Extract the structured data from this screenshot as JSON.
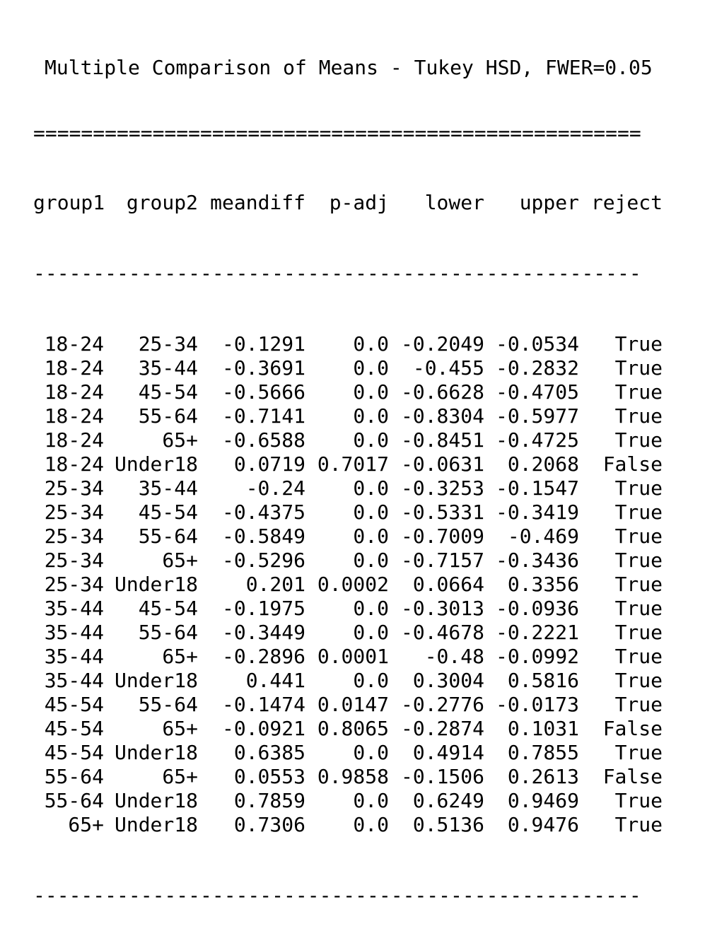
{
  "title": "Multiple Comparison of Means - Tukey HSD, FWER=0.05",
  "rule_double": "===================================================",
  "rule_single": "---------------------------------------------------",
  "columns": [
    "group1",
    "group2",
    "meandiff",
    "p-adj",
    "lower",
    "upper",
    "reject"
  ],
  "rows": [
    [
      "18-24",
      "25-34",
      "-0.1291",
      "0.0",
      "-0.2049",
      "-0.0534",
      "True"
    ],
    [
      "18-24",
      "35-44",
      "-0.3691",
      "0.0",
      "-0.455",
      "-0.2832",
      "True"
    ],
    [
      "18-24",
      "45-54",
      "-0.5666",
      "0.0",
      "-0.6628",
      "-0.4705",
      "True"
    ],
    [
      "18-24",
      "55-64",
      "-0.7141",
      "0.0",
      "-0.8304",
      "-0.5977",
      "True"
    ],
    [
      "18-24",
      "65+",
      "-0.6588",
      "0.0",
      "-0.8451",
      "-0.4725",
      "True"
    ],
    [
      "18-24",
      "Under18",
      "0.0719",
      "0.7017",
      "-0.0631",
      "0.2068",
      "False"
    ],
    [
      "25-34",
      "35-44",
      "-0.24",
      "0.0",
      "-0.3253",
      "-0.1547",
      "True"
    ],
    [
      "25-34",
      "45-54",
      "-0.4375",
      "0.0",
      "-0.5331",
      "-0.3419",
      "True"
    ],
    [
      "25-34",
      "55-64",
      "-0.5849",
      "0.0",
      "-0.7009",
      "-0.469",
      "True"
    ],
    [
      "25-34",
      "65+",
      "-0.5296",
      "0.0",
      "-0.7157",
      "-0.3436",
      "True"
    ],
    [
      "25-34",
      "Under18",
      "0.201",
      "0.0002",
      "0.0664",
      "0.3356",
      "True"
    ],
    [
      "35-44",
      "45-54",
      "-0.1975",
      "0.0",
      "-0.3013",
      "-0.0936",
      "True"
    ],
    [
      "35-44",
      "55-64",
      "-0.3449",
      "0.0",
      "-0.4678",
      "-0.2221",
      "True"
    ],
    [
      "35-44",
      "65+",
      "-0.2896",
      "0.0001",
      "-0.48",
      "-0.0992",
      "True"
    ],
    [
      "35-44",
      "Under18",
      "0.441",
      "0.0",
      "0.3004",
      "0.5816",
      "True"
    ],
    [
      "45-54",
      "55-64",
      "-0.1474",
      "0.0147",
      "-0.2776",
      "-0.0173",
      "True"
    ],
    [
      "45-54",
      "65+",
      "-0.0921",
      "0.8065",
      "-0.2874",
      "0.1031",
      "False"
    ],
    [
      "45-54",
      "Under18",
      "0.6385",
      "0.0",
      "0.4914",
      "0.7855",
      "True"
    ],
    [
      "55-64",
      "65+",
      "0.0553",
      "0.9858",
      "-0.1506",
      "0.2613",
      "False"
    ],
    [
      "55-64",
      "Under18",
      "0.7859",
      "0.0",
      "0.6249",
      "0.9469",
      "True"
    ],
    [
      "65+",
      "Under18",
      "0.7306",
      "0.0",
      "0.5136",
      "0.9476",
      "True"
    ]
  ]
}
